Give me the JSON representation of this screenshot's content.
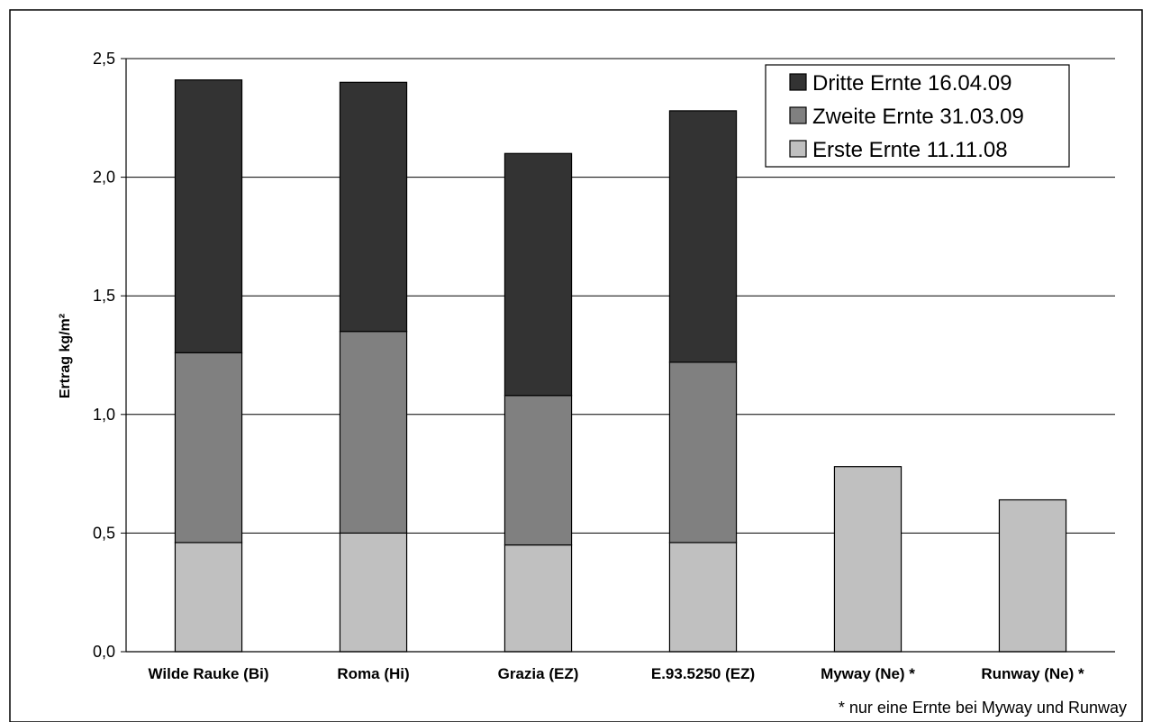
{
  "chart_data": {
    "type": "bar",
    "stacked": true,
    "categories": [
      "Wilde Rauke (Bi)",
      "Roma (Hi)",
      "Grazia (EZ)",
      "E.93.5250 (EZ)",
      "Myway (Ne) *",
      "Runway (Ne) *"
    ],
    "series": [
      {
        "name": "Erste Ernte 11.11.08",
        "color": "#c0c0c0",
        "values": [
          0.46,
          0.5,
          0.45,
          0.46,
          0.78,
          0.64
        ]
      },
      {
        "name": "Zweite Ernte 31.03.09",
        "color": "#808080",
        "values": [
          0.8,
          0.85,
          0.63,
          0.76,
          0,
          0
        ]
      },
      {
        "name": "Dritte Ernte 16.04.09",
        "color": "#333333",
        "values": [
          1.15,
          1.05,
          1.02,
          1.06,
          0,
          0
        ]
      }
    ],
    "ylabel": "Ertrag kg/m²",
    "ylim": [
      0,
      2.5
    ],
    "yticks": [
      "0,0",
      "0,5",
      "1,0",
      "1,5",
      "2,0",
      "2,5"
    ],
    "grid": true,
    "legend_position": "top-right",
    "legend_order": [
      "Dritte Ernte 16.04.09",
      "Zweite Ernte 31.03.09",
      "Erste Ernte 11.11.08"
    ],
    "footnote": "* nur eine Ernte bei Myway und Runway"
  }
}
